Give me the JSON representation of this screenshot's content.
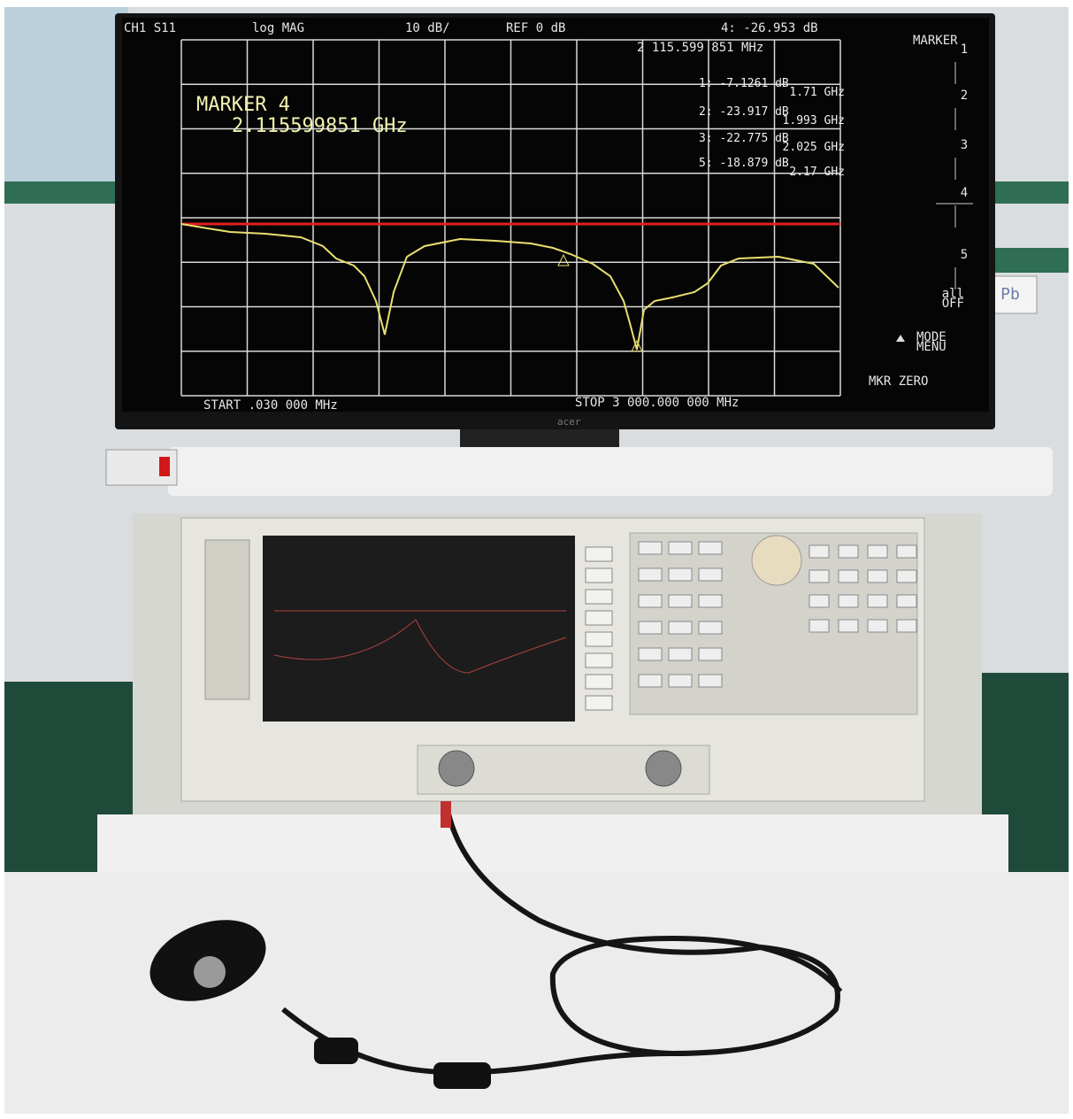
{
  "monitor": {
    "header": {
      "channel": "CH1 S11",
      "format": "log MAG",
      "scale": "10 dB/",
      "reference": "REF 0 dB",
      "active_marker_value": "4: -26.953 dB"
    },
    "active_marker_frequency": "2 115.599 851 MHz",
    "marker_title": "MARKER 4",
    "marker_frequency": "2.115599851 GHz",
    "marker_list": [
      {
        "value": "1: -7.1261 dB",
        "frequency": "1.71 GHz"
      },
      {
        "value": "2: -23.917 dB",
        "frequency": "1.993 GHz"
      },
      {
        "value": "3: -22.775 dB",
        "frequency": "2.025 GHz"
      },
      {
        "value": "5: -18.879 dB",
        "frequency": "2.17 GHz"
      }
    ],
    "softkeys": {
      "title": "MARKER",
      "items": [
        "1",
        "2",
        "3",
        "4",
        "5"
      ],
      "off": [
        "all",
        "OFF"
      ],
      "mode_menu": [
        "MODE",
        "MENU"
      ],
      "zero": "MKR ZERO"
    },
    "start": "START .030 000 MHz",
    "stop": "STOP 3 000.000 000 MHz",
    "brand": "acer"
  },
  "label": "Pb"
}
